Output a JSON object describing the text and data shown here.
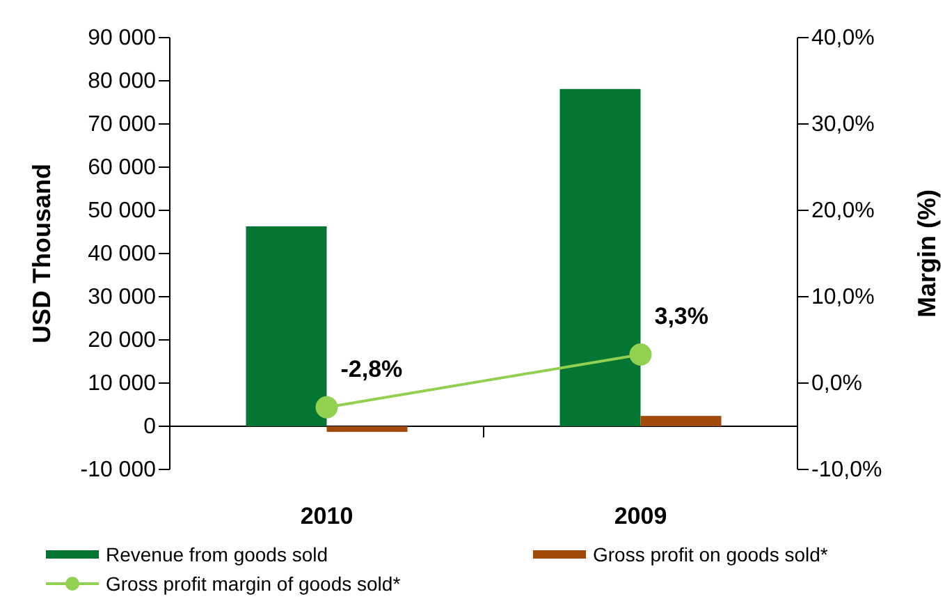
{
  "chart_data": {
    "type": "bar",
    "ylabel": "USD  Thousand",
    "y2label": "Margin (%)",
    "categories": [
      "2010",
      "2009"
    ],
    "series": [
      {
        "name": "Revenue from goods sold",
        "color": "#037633",
        "values": [
          46300,
          78100
        ]
      },
      {
        "name": "Gross profit on goods sold*",
        "color": "#a04b0c",
        "values": [
          -1300,
          2400
        ]
      },
      {
        "name": "Gross profit margin of goods sold*",
        "type": "line",
        "axis": "y2",
        "color": "#92d050",
        "values": [
          -2.8,
          3.3
        ],
        "value_labels": [
          "-2,8%",
          "3,3%"
        ]
      }
    ],
    "ylim": [
      -10000,
      90000
    ],
    "yticks": [
      {
        "value": -10000,
        "label": "-10 000"
      },
      {
        "value": 0,
        "label": "0"
      },
      {
        "value": 10000,
        "label": "10 000"
      },
      {
        "value": 20000,
        "label": "20 000"
      },
      {
        "value": 30000,
        "label": "30 000"
      },
      {
        "value": 40000,
        "label": "40 000"
      },
      {
        "value": 50000,
        "label": "50 000"
      },
      {
        "value": 60000,
        "label": "60 000"
      },
      {
        "value": 70000,
        "label": "70 000"
      },
      {
        "value": 80000,
        "label": "80 000"
      },
      {
        "value": 90000,
        "label": "90 000"
      }
    ],
    "y2lim": [
      -10,
      40
    ],
    "y2ticks": [
      {
        "value": -10,
        "label": "-10,0%"
      },
      {
        "value": 0,
        "label": "0,0%"
      },
      {
        "value": 10,
        "label": "10,0%"
      },
      {
        "value": 20,
        "label": "20,0%"
      },
      {
        "value": 30,
        "label": "30,0%"
      },
      {
        "value": 40,
        "label": "40,0%"
      }
    ],
    "marker": "circle",
    "legend": "bottom"
  }
}
